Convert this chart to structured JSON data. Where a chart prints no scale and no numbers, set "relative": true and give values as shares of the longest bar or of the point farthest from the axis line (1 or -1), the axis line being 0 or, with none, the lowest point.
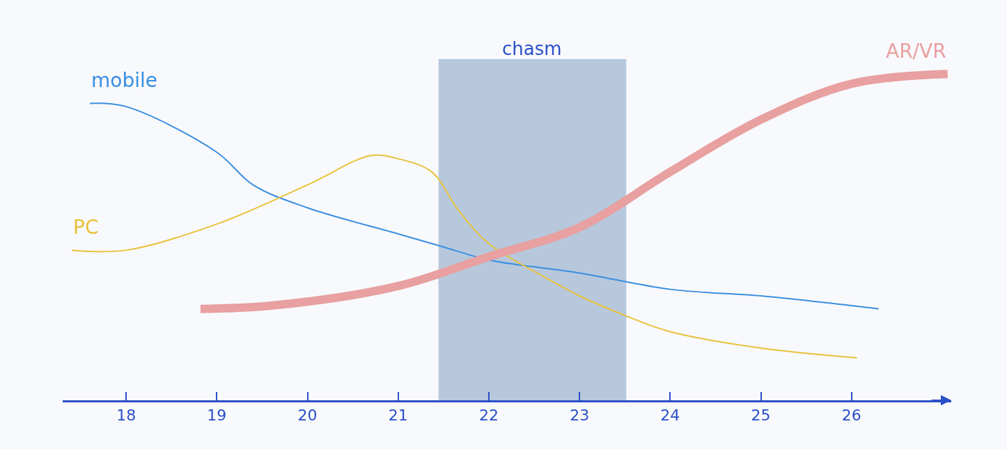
{
  "chart_data": {
    "type": "line",
    "relative": true,
    "xlim": [
      17.3,
      27.1
    ],
    "xticks": [
      18,
      19,
      20,
      21,
      22,
      23,
      24,
      25,
      26
    ],
    "grid": false,
    "legend": false,
    "marker": "none",
    "line_style": "solid",
    "series": [
      {
        "name": "mobile",
        "color": "#3a8ee0",
        "x": [
          17.6,
          18,
          19,
          19.4,
          20,
          21,
          21.5,
          22,
          23,
          24,
          25,
          26,
          26.3
        ],
        "values": [
          0.91,
          0.9,
          0.76,
          0.66,
          0.59,
          0.51,
          0.47,
          0.43,
          0.39,
          0.34,
          0.32,
          0.29,
          0.28
        ]
      },
      {
        "name": "PC",
        "color": "#e8c23a",
        "x": [
          17.4,
          18,
          19,
          20,
          20.7,
          21,
          21.37,
          21.67,
          22,
          22.63,
          23,
          23.5,
          24,
          25,
          26.06
        ],
        "values": [
          0.46,
          0.46,
          0.54,
          0.66,
          0.75,
          0.74,
          0.7,
          0.58,
          0.48,
          0.375,
          0.32,
          0.26,
          0.21,
          0.16,
          0.13
        ]
      },
      {
        "name": "AR/VR",
        "color": "#e8a0a0",
        "x": [
          18.82,
          19.6,
          21,
          22,
          23,
          24,
          25,
          26,
          27.06
        ],
        "values": [
          0.28,
          0.29,
          0.35,
          0.44,
          0.53,
          0.7,
          0.86,
          0.97,
          1.0
        ]
      }
    ],
    "bands": [
      {
        "axis": "x",
        "from": 21.46,
        "to": 23.5,
        "label": "chasm",
        "color": "#a8bcd6"
      }
    ]
  }
}
